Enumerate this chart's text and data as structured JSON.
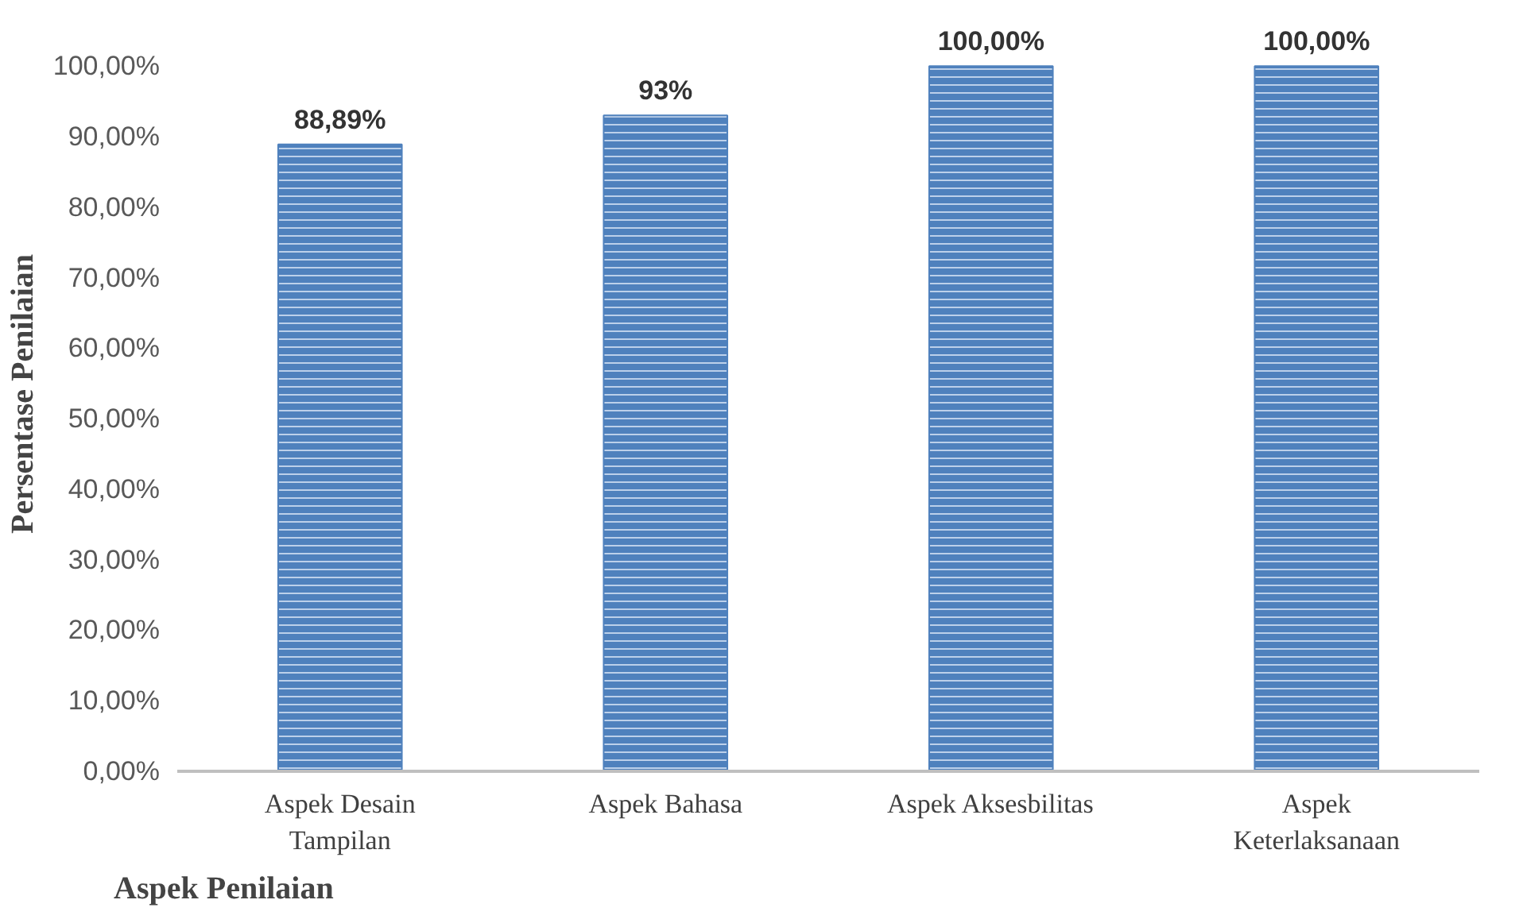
{
  "chart_data": {
    "type": "bar",
    "xlabel": "Aspek Penilaian",
    "ylabel": "Persentase Penilaian",
    "categories": [
      "Aspek Desain Tampilan",
      "Aspek Bahasa",
      "Aspek Aksesbilitas",
      "Aspek Keterlaksanaan"
    ],
    "values": [
      88.89,
      93,
      100,
      100
    ],
    "value_labels": [
      "88,89%",
      "93%",
      "100,00%",
      "100,00%"
    ],
    "color": "#4f81bd",
    "ylim": [
      0,
      100
    ],
    "yticks": [
      {
        "value": 0,
        "label": "0,00%"
      },
      {
        "value": 10,
        "label": "10,00%"
      },
      {
        "value": 20,
        "label": "20,00%"
      },
      {
        "value": 30,
        "label": "30,00%"
      },
      {
        "value": 40,
        "label": "40,00%"
      },
      {
        "value": 50,
        "label": "50,00%"
      },
      {
        "value": 60,
        "label": "60,00%"
      },
      {
        "value": 70,
        "label": "70,00%"
      },
      {
        "value": 80,
        "label": "80,00%"
      },
      {
        "value": 90,
        "label": "90,00%"
      },
      {
        "value": 100,
        "label": "100,00%"
      }
    ],
    "grid": false
  }
}
